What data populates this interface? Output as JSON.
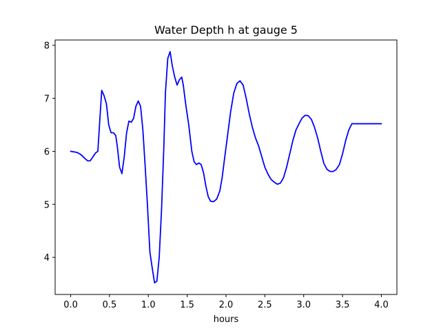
{
  "chart_data": {
    "type": "line",
    "title": "Water Depth h at gauge 5",
    "xlabel": "hours",
    "ylabel": "",
    "xlim": [
      -0.2,
      4.2
    ],
    "ylim": [
      3.3,
      8.1
    ],
    "x_ticks": [
      0.0,
      0.5,
      1.0,
      1.5,
      2.0,
      2.5,
      3.0,
      3.5,
      4.0
    ],
    "x_tick_labels": [
      "0.0",
      "0.5",
      "1.0",
      "1.5",
      "2.0",
      "2.5",
      "3.0",
      "3.5",
      "4.0"
    ],
    "y_ticks": [
      4,
      5,
      6,
      7,
      8
    ],
    "y_tick_labels": [
      "4",
      "5",
      "6",
      "7",
      "8"
    ],
    "grid": false,
    "series": [
      {
        "color": "#0000ff",
        "x": [
          0.0,
          0.08,
          0.13,
          0.18,
          0.22,
          0.25,
          0.28,
          0.32,
          0.35,
          0.38,
          0.4,
          0.43,
          0.46,
          0.49,
          0.52,
          0.55,
          0.58,
          0.6,
          0.63,
          0.66,
          0.69,
          0.72,
          0.75,
          0.78,
          0.81,
          0.84,
          0.87,
          0.9,
          0.93,
          0.96,
          0.99,
          1.02,
          1.05,
          1.08,
          1.11,
          1.14,
          1.17,
          1.2,
          1.22,
          1.25,
          1.28,
          1.31,
          1.34,
          1.37,
          1.4,
          1.43,
          1.45,
          1.48,
          1.52,
          1.56,
          1.59,
          1.62,
          1.65,
          1.68,
          1.71,
          1.74,
          1.77,
          1.8,
          1.84,
          1.88,
          1.92,
          1.95,
          1.98,
          2.02,
          2.06,
          2.1,
          2.14,
          2.18,
          2.22,
          2.26,
          2.3,
          2.34,
          2.38,
          2.42,
          2.46,
          2.5,
          2.54,
          2.58,
          2.62,
          2.66,
          2.7,
          2.74,
          2.78,
          2.82,
          2.86,
          2.9,
          2.94,
          2.98,
          3.02,
          3.06,
          3.1,
          3.14,
          3.18,
          3.22,
          3.26,
          3.3,
          3.34,
          3.38,
          3.42,
          3.46,
          3.5,
          3.54,
          3.58,
          3.62,
          3.66,
          3.7,
          3.74,
          3.78,
          3.82,
          3.86,
          3.9,
          3.94,
          3.98,
          4.0
        ],
        "y": [
          6.0,
          5.98,
          5.94,
          5.87,
          5.82,
          5.82,
          5.88,
          5.97,
          6.0,
          6.7,
          7.15,
          7.05,
          6.9,
          6.5,
          6.35,
          6.35,
          6.3,
          6.1,
          5.7,
          5.58,
          5.9,
          6.35,
          6.57,
          6.55,
          6.62,
          6.85,
          6.95,
          6.85,
          6.4,
          5.7,
          4.95,
          4.1,
          3.8,
          3.52,
          3.55,
          4.0,
          4.9,
          6.1,
          7.1,
          7.75,
          7.88,
          7.6,
          7.4,
          7.25,
          7.35,
          7.4,
          7.25,
          6.9,
          6.5,
          6.0,
          5.8,
          5.75,
          5.78,
          5.75,
          5.6,
          5.35,
          5.15,
          5.06,
          5.05,
          5.1,
          5.25,
          5.5,
          5.85,
          6.3,
          6.75,
          7.1,
          7.28,
          7.33,
          7.25,
          7.0,
          6.7,
          6.45,
          6.25,
          6.1,
          5.9,
          5.7,
          5.57,
          5.47,
          5.42,
          5.38,
          5.4,
          5.5,
          5.7,
          5.95,
          6.2,
          6.4,
          6.52,
          6.63,
          6.68,
          6.67,
          6.6,
          6.45,
          6.25,
          6.0,
          5.77,
          5.66,
          5.62,
          5.62,
          5.66,
          5.75,
          5.95,
          6.2,
          6.4,
          6.52,
          6.52,
          6.52,
          6.52,
          6.52,
          6.52,
          6.52,
          6.52,
          6.52,
          6.52,
          6.52
        ]
      }
    ]
  }
}
